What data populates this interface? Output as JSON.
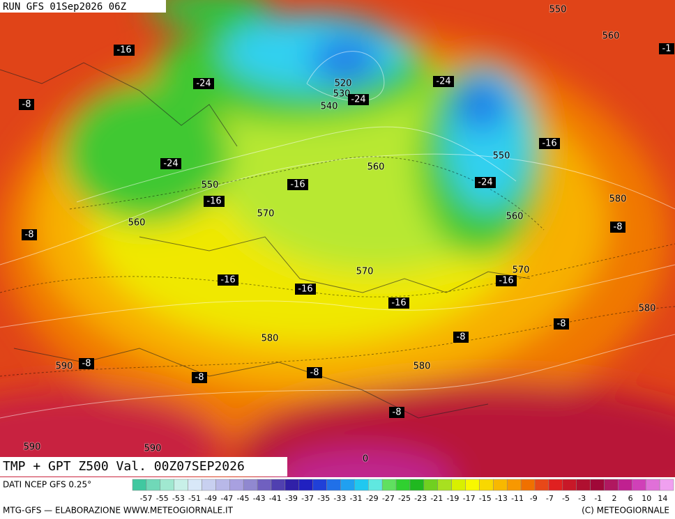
{
  "header": {
    "run": "RUN GFS 01Sep2026 06Z"
  },
  "contour_labels": [
    "550",
    "560",
    "520",
    "530",
    "540",
    "560",
    "550",
    "550",
    "570",
    "560",
    "580",
    "560",
    "570",
    "570",
    "580",
    "580",
    "580",
    "590",
    "590",
    "590",
    "0"
  ],
  "temperature_labels": [
    "-16",
    "-1",
    "-24",
    "-24",
    "-8",
    "-24",
    "-24",
    "-16",
    "-16",
    "-24",
    "-16",
    "-8",
    "-8",
    "-16",
    "-16",
    "-16",
    "-16",
    "-8",
    "-8",
    "-8",
    "-8",
    "-8",
    "-8"
  ],
  "footer": {
    "title": "TMP + GPT Z500 Val. 00Z07SEP2026",
    "source": "DATI NCEP GFS 0.25°",
    "credit": "MTG-GFS — ELABORAZIONE WWW.METEOGIORNALE.IT",
    "copyright": "(C) METEOGIORNALE"
  },
  "legend": {
    "labels": [
      "-57",
      "-55",
      "-53",
      "-51",
      "-49",
      "-47",
      "-45",
      "-43",
      "-41",
      "-39",
      "-37",
      "-35",
      "-33",
      "-31",
      "-29",
      "-27",
      "-25",
      "-23",
      "-21",
      "-19",
      "-17",
      "-15",
      "-13",
      "-11",
      "-9",
      "-7",
      "-5",
      "-3",
      "-1",
      "2",
      "6",
      "10",
      "14"
    ],
    "colors": [
      "#40c8a0",
      "#70d8b8",
      "#a0e8d0",
      "#c8f0e8",
      "#d8e8f8",
      "#c8d0f0",
      "#b8b8e8",
      "#a8a0e0",
      "#9088d0",
      "#7060c0",
      "#5040b0",
      "#3020a8",
      "#2020c0",
      "#2040d8",
      "#2070e8",
      "#20a0f0",
      "#20c8f0",
      "#60e8e0",
      "#60e060",
      "#30d030",
      "#20b820",
      "#70d020",
      "#a8e020",
      "#d8f000",
      "#f8f800",
      "#f8d800",
      "#f8b800",
      "#f89800",
      "#f07000",
      "#e84818",
      "#e02020",
      "#c81828",
      "#b01030",
      "#a00838",
      "#b01860",
      "#c02090",
      "#d040b8",
      "#e070d8",
      "#f0a0f0"
    ]
  }
}
